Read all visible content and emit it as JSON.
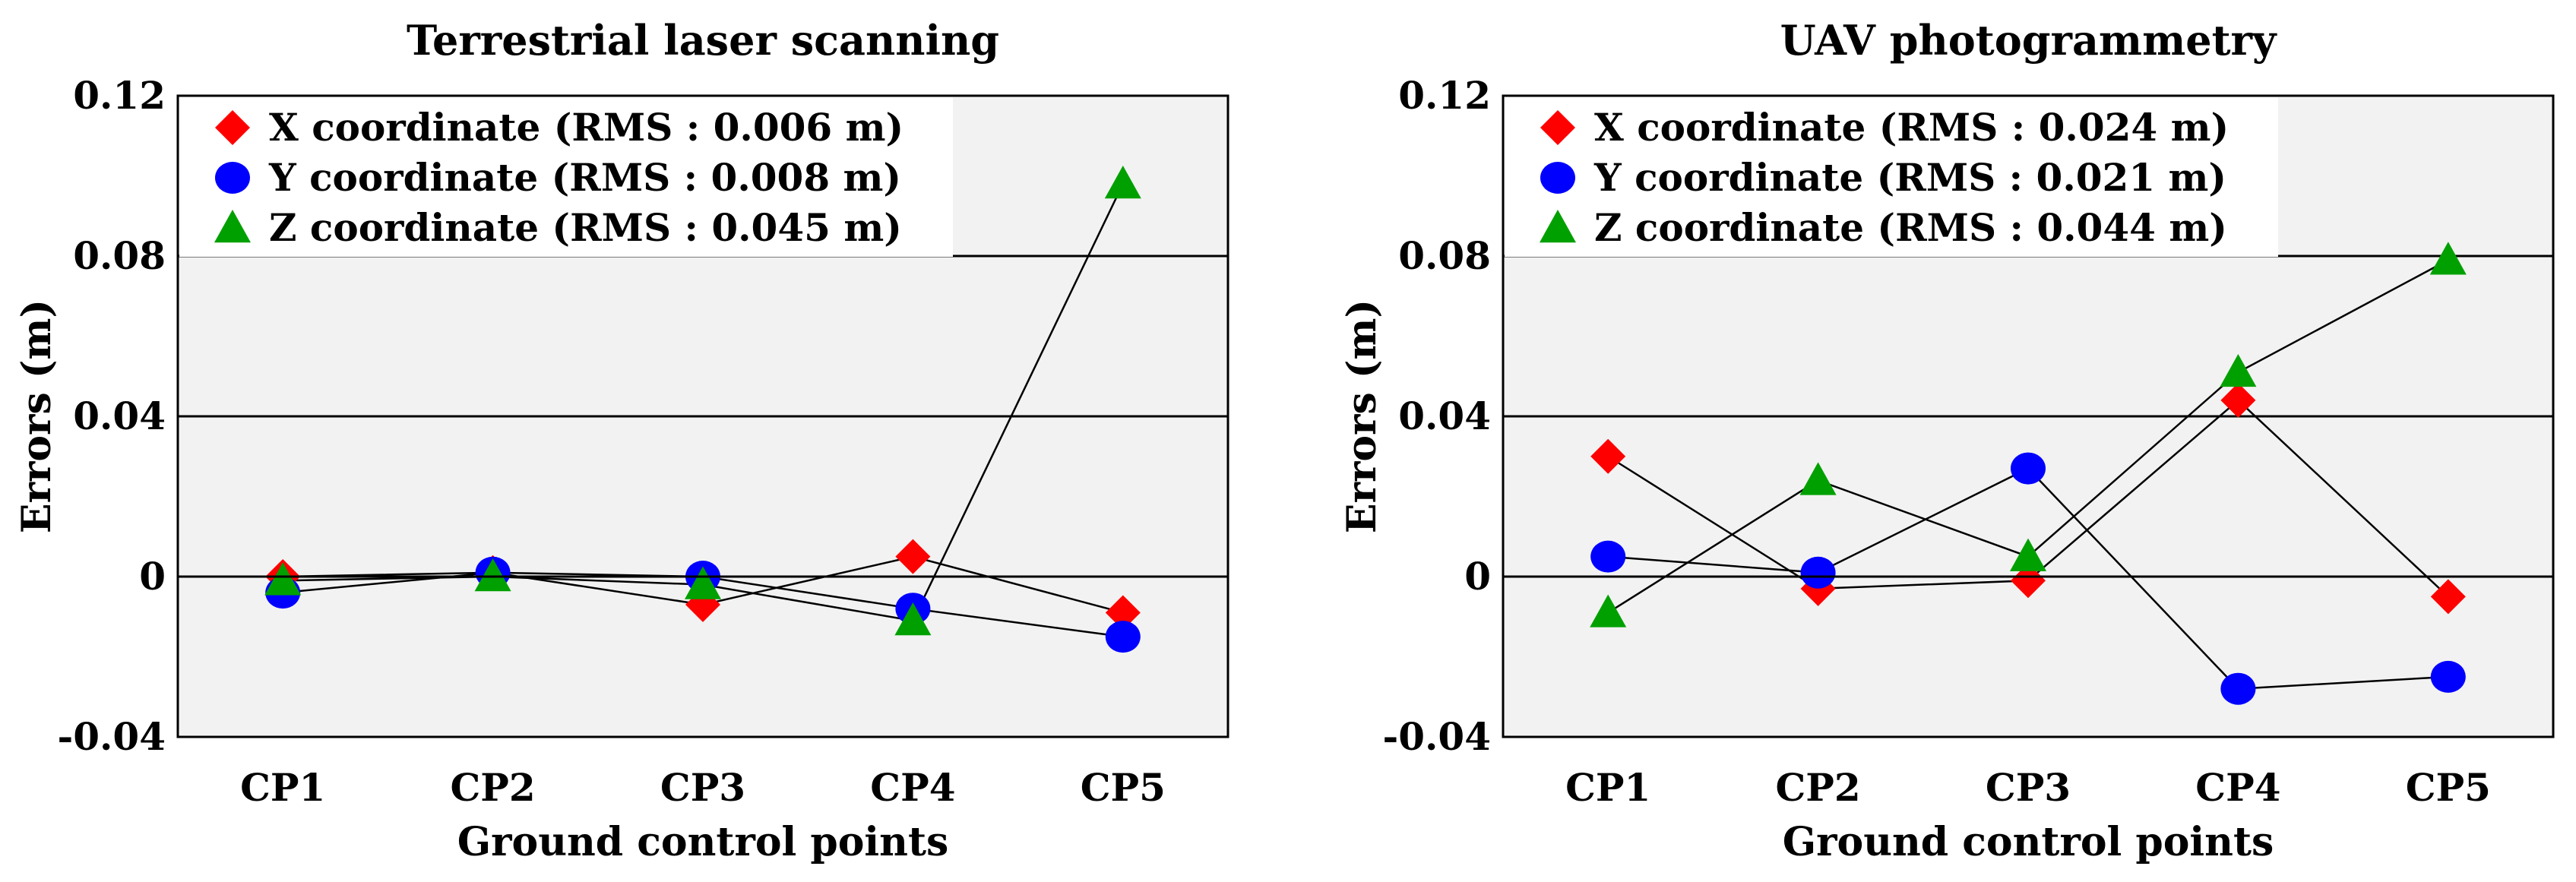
{
  "chart_data": [
    {
      "type": "line",
      "title": "Terrestrial laser scanning",
      "xlabel": "Ground control points",
      "ylabel": "Errors (m)",
      "categories": [
        "CP1",
        "CP2",
        "CP3",
        "CP4",
        "CP5"
      ],
      "ylim": [
        -0.04,
        0.12
      ],
      "yticks": [
        -0.04,
        0,
        0.04,
        0.08,
        0.12
      ],
      "ytick_labels": [
        "-0.04",
        "0",
        "0.04",
        "0.08",
        "0.12"
      ],
      "grid": "horizontal",
      "legend_position": "top-left",
      "series": [
        {
          "name": "X coordinate (RMS : 0.006 m)",
          "marker": "diamond",
          "color": "#ff0000",
          "values": [
            0.0,
            0.001,
            -0.007,
            0.005,
            -0.009
          ]
        },
        {
          "name": "Y coordinate (RMS : 0.008 m)",
          "marker": "circle",
          "color": "#0000ff",
          "values": [
            -0.004,
            0.001,
            0.0,
            -0.008,
            -0.015
          ]
        },
        {
          "name": "Z coordinate (RMS : 0.045 m)",
          "marker": "triangle",
          "color": "#00a000",
          "values": [
            -0.001,
            0.0,
            -0.002,
            -0.011,
            0.098
          ]
        }
      ]
    },
    {
      "type": "line",
      "title": "UAV photogrammetry",
      "xlabel": "Ground control points",
      "ylabel": "Errors (m)",
      "categories": [
        "CP1",
        "CP2",
        "CP3",
        "CP4",
        "CP5"
      ],
      "ylim": [
        -0.04,
        0.12
      ],
      "yticks": [
        -0.04,
        0,
        0.04,
        0.08,
        0.12
      ],
      "ytick_labels": [
        "-0.04",
        "0",
        "0.04",
        "0.08",
        "0.12"
      ],
      "grid": "horizontal",
      "legend_position": "top-left",
      "series": [
        {
          "name": "X coordinate (RMS : 0.024 m)",
          "marker": "diamond",
          "color": "#ff0000",
          "values": [
            0.03,
            -0.003,
            -0.001,
            0.044,
            -0.005
          ]
        },
        {
          "name": "Y coordinate (RMS : 0.021 m)",
          "marker": "circle",
          "color": "#0000ff",
          "values": [
            0.005,
            0.001,
            0.027,
            -0.028,
            -0.025
          ]
        },
        {
          "name": "Z coordinate (RMS : 0.044 m)",
          "marker": "triangle",
          "color": "#00a000",
          "values": [
            -0.009,
            0.024,
            0.005,
            0.051,
            0.079
          ]
        }
      ]
    }
  ]
}
